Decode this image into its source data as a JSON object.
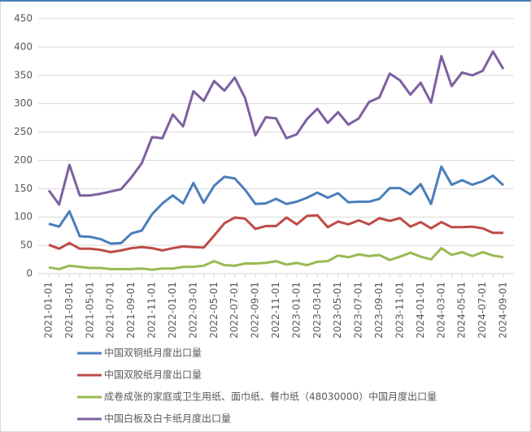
{
  "chart_data": {
    "type": "line",
    "categories": [
      "2021-01-01",
      null,
      "2021-03-01",
      null,
      "2021-05-01",
      null,
      "2021-07-01",
      null,
      "2021-09-01",
      null,
      "2021-11-01",
      null,
      "2022-01-01",
      null,
      "2022-03-01",
      null,
      "2022-05-01",
      null,
      "2022-07-01",
      null,
      "2022-09-01",
      null,
      "2022-11-01",
      null,
      "2023-01-01",
      null,
      "2023-03-01",
      null,
      "2023-05-01",
      null,
      "2023-07-01",
      null,
      "2023-09-01",
      null,
      "2023-11-01",
      null,
      "2024-01-01",
      null,
      "2024-03-01",
      null,
      "2024-05-01",
      null,
      "2024-07-01",
      null,
      "2024-09-01"
    ],
    "series": [
      {
        "name": "中国双铜纸月度出口量",
        "color": "#4a7ebb",
        "values": [
          88,
          83,
          110,
          66,
          65,
          61,
          53,
          54,
          71,
          76,
          105,
          124,
          138,
          124,
          160,
          125,
          155,
          171,
          168,
          148,
          123,
          124,
          132,
          123,
          127,
          134,
          143,
          134,
          142,
          126,
          127,
          127,
          132,
          151,
          151,
          140,
          158,
          123,
          189,
          157,
          165,
          157,
          163,
          173,
          156
        ]
      },
      {
        "name": "中国双胶纸月度出口量",
        "color": "#be4b48",
        "values": [
          51,
          44,
          54,
          44,
          44,
          42,
          38,
          41,
          45,
          47,
          45,
          41,
          45,
          48,
          47,
          46,
          67,
          89,
          99,
          97,
          79,
          84,
          84,
          99,
          87,
          102,
          103,
          82,
          92,
          87,
          94,
          87,
          98,
          93,
          98,
          83,
          91,
          80,
          91,
          82,
          82,
          83,
          80,
          72,
          72
        ]
      },
      {
        "name": "成卷成张的家庭或卫生用纸、面巾纸、餐巾纸（48030000）中国月度出口量",
        "color": "#98b954",
        "values": [
          11,
          8,
          14,
          12,
          10,
          10,
          8,
          8,
          8,
          9,
          7,
          9,
          9,
          12,
          12,
          14,
          22,
          15,
          14,
          18,
          18,
          19,
          22,
          16,
          19,
          15,
          21,
          22,
          32,
          29,
          34,
          31,
          33,
          24,
          30,
          37,
          30,
          25,
          45,
          33,
          38,
          31,
          38,
          32,
          29
        ]
      },
      {
        "name": "中国白板及白卡纸月度出口量",
        "color": "#7d60a0",
        "values": [
          147,
          122,
          192,
          138,
          138,
          141,
          145,
          149,
          170,
          195,
          241,
          239,
          281,
          260,
          322,
          305,
          340,
          323,
          346,
          310,
          244,
          276,
          274,
          239,
          246,
          273,
          291,
          266,
          285,
          263,
          274,
          303,
          311,
          353,
          341,
          316,
          337,
          302,
          384,
          331,
          355,
          350,
          358,
          392,
          361
        ]
      }
    ],
    "ylim": [
      0,
      450
    ],
    "yticks": [
      0,
      50,
      100,
      150,
      200,
      250,
      300,
      350,
      400,
      450
    ],
    "grid": true
  }
}
